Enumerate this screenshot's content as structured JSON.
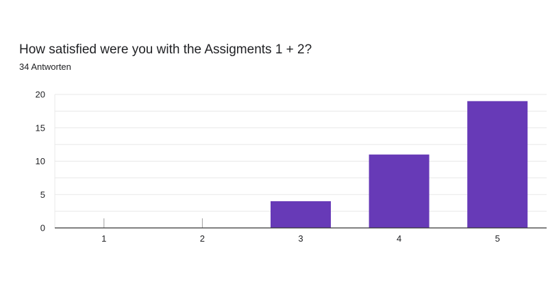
{
  "title": "How satisfied were you with the Assigments 1 + 2?",
  "response_count": "34 Antworten",
  "colors": {
    "bar": "#673ab7",
    "grid": "#e8e8e8",
    "axis": "#333333",
    "tick_mark": "#9e9e9e"
  },
  "chart_data": {
    "type": "bar",
    "title": "How satisfied were you with the Assigments 1 + 2?",
    "xlabel": "",
    "ylabel": "",
    "categories": [
      "1",
      "2",
      "3",
      "4",
      "5"
    ],
    "values": [
      0,
      0,
      4,
      11,
      19
    ],
    "ylim": [
      0,
      20
    ],
    "yticks": [
      "0",
      "5",
      "10",
      "15",
      "20"
    ],
    "grid": true,
    "legend": "none"
  }
}
